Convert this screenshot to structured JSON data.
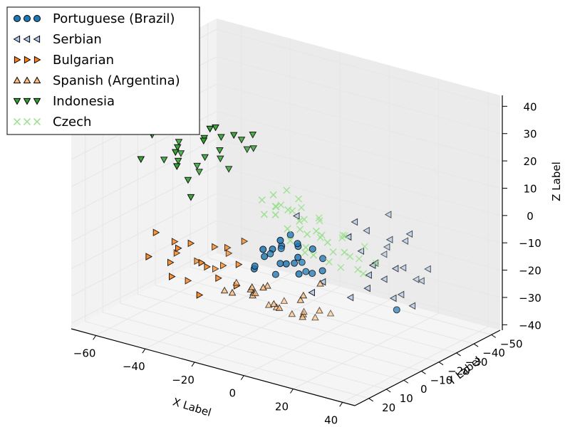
{
  "chart_data": {
    "type": "scatter",
    "projection": "3d",
    "xlabel": "X Label",
    "ylabel": "Y Label",
    "zlabel": "Z Label",
    "xlim": [
      -70,
      45
    ],
    "ylim": [
      -55,
      28
    ],
    "zlim": [
      -42,
      44
    ],
    "x_ticks": [
      "−60",
      "−40",
      "−20",
      "0",
      "20",
      "40"
    ],
    "y_ticks": [
      "20",
      "10",
      "0",
      "−10",
      "−20",
      "−30",
      "−40",
      "−50"
    ],
    "z_ticks": [
      "40",
      "30",
      "20",
      "10",
      "0",
      "−10",
      "−20",
      "−30",
      "−40"
    ],
    "grid": true,
    "legend_position": "top-left",
    "series": [
      {
        "name": "Portuguese (Brazil)",
        "marker": "circle",
        "color": "#1f77b4",
        "points": [
          [
            -8,
            5,
            -8
          ],
          [
            -3,
            3,
            -10
          ],
          [
            -6,
            -2,
            -6
          ],
          [
            -10,
            8,
            -12
          ],
          [
            0,
            -3,
            -5
          ],
          [
            2,
            2,
            -9
          ],
          [
            5,
            -4,
            -14
          ],
          [
            -4,
            6,
            -4
          ],
          [
            -12,
            -4,
            -11
          ],
          [
            8,
            0,
            -3
          ],
          [
            3,
            8,
            -7
          ],
          [
            -2,
            -8,
            -13
          ],
          [
            6,
            5,
            -11
          ],
          [
            -7,
            0,
            -16
          ],
          [
            10,
            -3,
            -7
          ],
          [
            -5,
            10,
            -3
          ],
          [
            1,
            -6,
            -15
          ],
          [
            4,
            3,
            -1
          ],
          [
            -9,
            -6,
            -9
          ],
          [
            7,
            7,
            -4
          ],
          [
            12,
            0,
            -10
          ],
          [
            -1,
            0,
            0
          ],
          [
            2,
            10,
            2
          ],
          [
            -14,
            2,
            -14
          ],
          [
            35,
            -10,
            -22
          ]
        ]
      },
      {
        "name": "Serbian",
        "marker": "triangle-left",
        "color": "#aec7e8",
        "points": [
          [
            18,
            -10,
            6
          ],
          [
            20,
            -14,
            2
          ],
          [
            22,
            -8,
            -3
          ],
          [
            25,
            -12,
            -8
          ],
          [
            28,
            -16,
            0
          ],
          [
            24,
            -20,
            -5
          ],
          [
            30,
            -10,
            -12
          ],
          [
            26,
            -6,
            -15
          ],
          [
            32,
            -18,
            -10
          ],
          [
            34,
            -14,
            -18
          ],
          [
            36,
            -8,
            -6
          ],
          [
            38,
            -20,
            -14
          ],
          [
            40,
            -12,
            -20
          ],
          [
            30,
            -22,
            -2
          ],
          [
            28,
            -4,
            -9
          ],
          [
            33,
            -24,
            -16
          ],
          [
            36,
            -16,
            4
          ],
          [
            22,
            -2,
            -18
          ],
          [
            15,
            4,
            -12
          ],
          [
            12,
            6,
            -16
          ],
          [
            38,
            -4,
            -15
          ],
          [
            42,
            -18,
            -8
          ],
          [
            20,
            -24,
            -10
          ],
          [
            26,
            -18,
            8
          ],
          [
            31,
            -2,
            -4
          ],
          [
            -2,
            -5,
            5
          ],
          [
            24,
            2,
            6
          ]
        ]
      },
      {
        "name": "Bulgarian",
        "marker": "triangle-right",
        "color": "#ff7f0e",
        "points": [
          [
            -52,
            5,
            -10
          ],
          [
            -48,
            0,
            -14
          ],
          [
            -44,
            8,
            -18
          ],
          [
            -50,
            -4,
            -20
          ],
          [
            -40,
            2,
            -12
          ],
          [
            -36,
            -6,
            -15
          ],
          [
            -42,
            10,
            -22
          ],
          [
            -32,
            4,
            -18
          ],
          [
            -28,
            -2,
            -12
          ],
          [
            -46,
            -10,
            -24
          ],
          [
            -38,
            12,
            -10
          ],
          [
            -34,
            -8,
            -22
          ],
          [
            -26,
            6,
            -20
          ],
          [
            -30,
            10,
            -14
          ],
          [
            -22,
            0,
            -16
          ],
          [
            -44,
            -2,
            -28
          ],
          [
            -50,
            12,
            -16
          ],
          [
            -24,
            -6,
            -10
          ],
          [
            -36,
            -14,
            -20
          ],
          [
            -20,
            4,
            -22
          ],
          [
            -40,
            -12,
            -26
          ],
          [
            -28,
            14,
            -24
          ]
        ]
      },
      {
        "name": "Spanish (Argentina)",
        "marker": "triangle-up",
        "color": "#ffbb78",
        "points": [
          [
            -30,
            -10,
            -28
          ],
          [
            -26,
            -14,
            -32
          ],
          [
            -22,
            -8,
            -30
          ],
          [
            -18,
            -16,
            -36
          ],
          [
            -14,
            -12,
            -34
          ],
          [
            -24,
            -20,
            -38
          ],
          [
            -20,
            -4,
            -26
          ],
          [
            -16,
            -22,
            -40
          ],
          [
            -12,
            -6,
            -30
          ],
          [
            -28,
            -18,
            -34
          ],
          [
            -10,
            -20,
            -38
          ],
          [
            -6,
            -14,
            -36
          ],
          [
            -32,
            -6,
            -30
          ],
          [
            -14,
            -26,
            -40
          ],
          [
            -4,
            -10,
            -28
          ],
          [
            -18,
            -2,
            -24
          ],
          [
            -8,
            -24,
            -40
          ],
          [
            -22,
            -26,
            -38
          ],
          [
            -2,
            -18,
            -34
          ],
          [
            -26,
            -2,
            -28
          ],
          [
            -16,
            -8,
            -25
          ],
          [
            0,
            -6,
            -24
          ],
          [
            4,
            -10,
            -20
          ],
          [
            -12,
            0,
            -22
          ],
          [
            -6,
            -30,
            -40
          ]
        ]
      },
      {
        "name": "Indonesia",
        "marker": "triangle-down",
        "color": "#2ca02c",
        "points": [
          [
            -50,
            10,
            28
          ],
          [
            -46,
            16,
            32
          ],
          [
            -42,
            6,
            26
          ],
          [
            -38,
            12,
            22
          ],
          [
            -34,
            18,
            30
          ],
          [
            -30,
            8,
            24
          ],
          [
            -26,
            14,
            34
          ],
          [
            -22,
            20,
            36
          ],
          [
            -44,
            2,
            20
          ],
          [
            -40,
            20,
            38
          ],
          [
            -36,
            4,
            18
          ],
          [
            -32,
            22,
            30
          ],
          [
            -28,
            2,
            22
          ],
          [
            -24,
            8,
            28
          ],
          [
            -20,
            16,
            40
          ],
          [
            -46,
            22,
            24
          ],
          [
            -18,
            4,
            32
          ],
          [
            -38,
            0,
            14
          ],
          [
            -34,
            12,
            16
          ],
          [
            -30,
            24,
            26
          ],
          [
            -26,
            0,
            18
          ],
          [
            -22,
            10,
            34
          ],
          [
            -18,
            22,
            42
          ],
          [
            -14,
            14,
            38
          ],
          [
            -42,
            14,
            36
          ],
          [
            -16,
            0,
            28
          ],
          [
            -30,
            16,
            12
          ],
          [
            -48,
            6,
            18
          ],
          [
            -20,
            -2,
            26
          ],
          [
            -12,
            6,
            36
          ]
        ]
      },
      {
        "name": "Czech",
        "marker": "x",
        "color": "#98df8a",
        "points": [
          [
            0,
            10,
            14
          ],
          [
            4,
            6,
            12
          ],
          [
            8,
            14,
            16
          ],
          [
            12,
            2,
            10
          ],
          [
            6,
            18,
            18
          ],
          [
            10,
            10,
            8
          ],
          [
            14,
            16,
            14
          ],
          [
            2,
            -2,
            10
          ],
          [
            16,
            6,
            6
          ],
          [
            18,
            12,
            10
          ],
          [
            20,
            0,
            4
          ],
          [
            8,
            -4,
            6
          ],
          [
            22,
            8,
            2
          ],
          [
            24,
            14,
            8
          ],
          [
            12,
            20,
            12
          ],
          [
            26,
            4,
            0
          ],
          [
            4,
            22,
            16
          ],
          [
            16,
            -6,
            2
          ],
          [
            28,
            10,
            4
          ],
          [
            14,
            -10,
            0
          ],
          [
            10,
            24,
            18
          ],
          [
            18,
            18,
            6
          ],
          [
            6,
            2,
            8
          ],
          [
            24,
            -4,
            -4
          ],
          [
            20,
            20,
            12
          ],
          [
            -2,
            4,
            12
          ],
          [
            30,
            2,
            -6
          ],
          [
            2,
            14,
            20
          ],
          [
            22,
            -10,
            -2
          ],
          [
            12,
            10,
            0
          ],
          [
            26,
            16,
            2
          ],
          [
            8,
            8,
            18
          ],
          [
            32,
            8,
            -2
          ],
          [
            16,
            24,
            10
          ],
          [
            -4,
            12,
            16
          ],
          [
            18,
            -2,
            -8
          ],
          [
            28,
            -8,
            -6
          ],
          [
            14,
            4,
            4
          ],
          [
            6,
            12,
            22
          ],
          [
            24,
            22,
            6
          ]
        ]
      }
    ]
  }
}
